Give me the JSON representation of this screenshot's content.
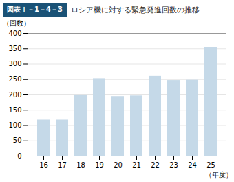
{
  "chart_data": {
    "type": "bar",
    "title": "ロシア機に対する緊急発進回数の推移",
    "annotations": [
      "図表Ｉ－1－4－3"
    ],
    "x_label": "（年度）",
    "y_label": "（回数）",
    "categories": [
      "16",
      "17",
      "18",
      "19",
      "20",
      "21",
      "22",
      "23",
      "24",
      "25"
    ],
    "values": [
      118,
      118,
      198,
      253,
      195,
      197,
      261,
      247,
      248,
      355
    ],
    "color": "#c5d9e8",
    "ylim": [
      0,
      400
    ],
    "yticks": [
      0,
      50,
      100,
      150,
      200,
      250,
      300,
      350,
      400
    ],
    "grid": true
  }
}
